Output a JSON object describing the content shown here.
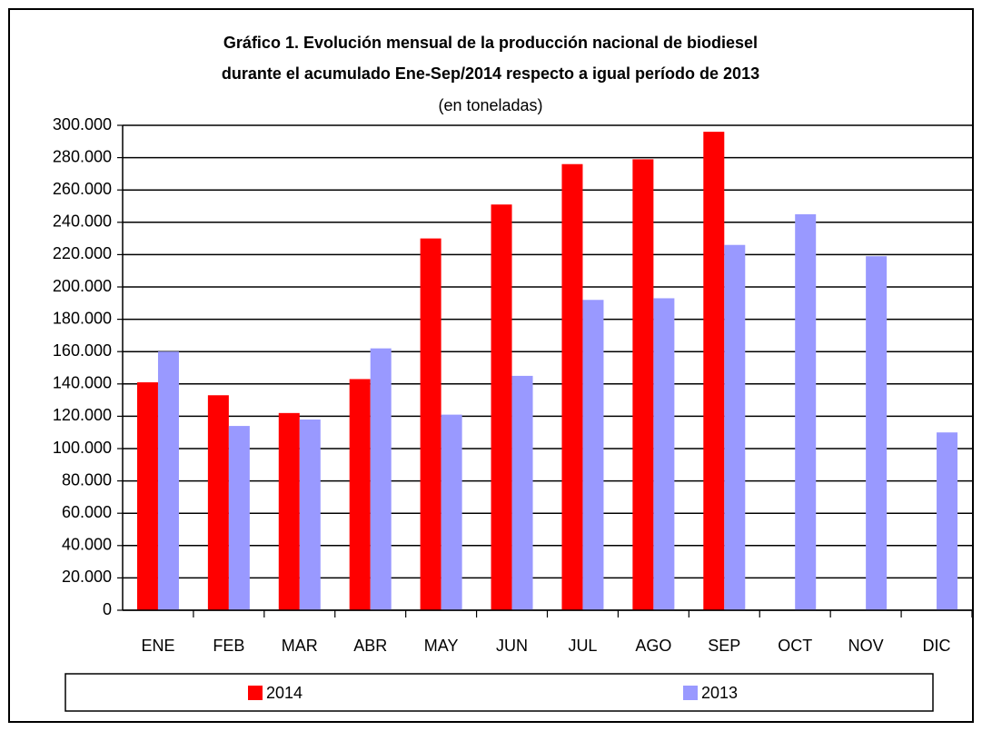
{
  "chart_data": {
    "type": "bar",
    "title": [
      "Gráfico 1. Evolución mensual de la producción nacional de biodiesel",
      "durante el acumulado Ene-Sep/2014 respecto a igual período de 2013"
    ],
    "subtitle": "(en toneladas)",
    "categories": [
      "ENE",
      "FEB",
      "MAR",
      "ABR",
      "MAY",
      "JUN",
      "JUL",
      "AGO",
      "SEP",
      "OCT",
      "NOV",
      "DIC"
    ],
    "series": [
      {
        "name": "2014",
        "color": "#ff0000",
        "values": [
          141000,
          133000,
          122000,
          143000,
          230000,
          251000,
          276000,
          279000,
          296000,
          null,
          null,
          null
        ]
      },
      {
        "name": "2013",
        "color": "#9999ff",
        "values": [
          160000,
          114000,
          118000,
          162000,
          121000,
          145000,
          192000,
          193000,
          226000,
          245000,
          219000,
          110000
        ]
      }
    ],
    "ylim": [
      0,
      300000
    ],
    "yticks": [
      0,
      {
        "value": 20000,
        "label": "20.000"
      },
      {
        "value": 40000,
        "label": "40.000"
      },
      {
        "value": 60000,
        "label": "60.000"
      },
      {
        "value": 80000,
        "label": "80.000"
      },
      {
        "value": 100000,
        "label": "100.000"
      },
      {
        "value": 120000,
        "label": "120.000"
      },
      {
        "value": 140000,
        "label": "140.000"
      },
      {
        "value": 160000,
        "label": "160.000"
      },
      {
        "value": 180000,
        "label": "180.000"
      },
      {
        "value": 200000,
        "label": "200.000"
      },
      {
        "value": 220000,
        "label": "220.000"
      },
      {
        "value": 240000,
        "label": "240.000"
      },
      {
        "value": 260000,
        "label": "260.000"
      },
      {
        "value": 280000,
        "label": "280.000"
      },
      {
        "value": 300000,
        "label": "300.000"
      }
    ],
    "grid": true
  }
}
